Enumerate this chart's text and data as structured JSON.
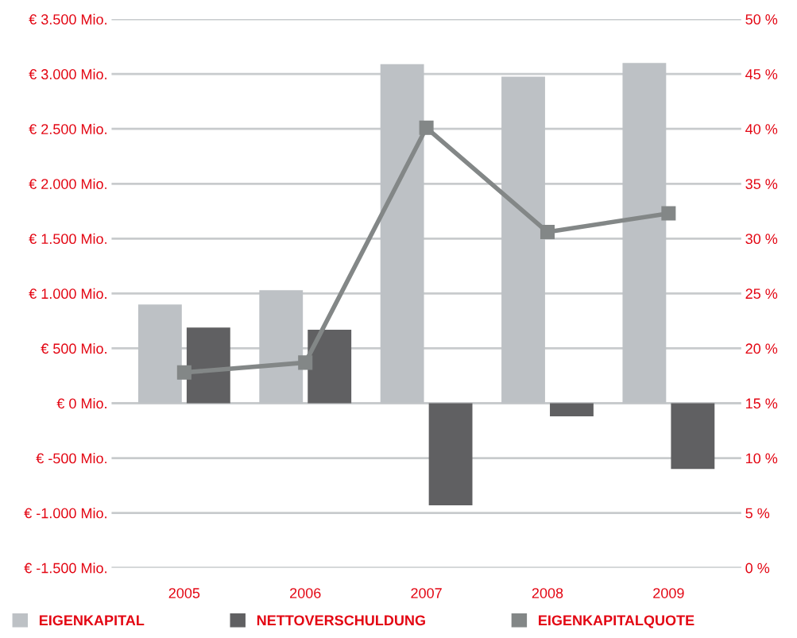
{
  "chart_data": {
    "type": "bar",
    "categories": [
      "2005",
      "2006",
      "2007",
      "2008",
      "2009"
    ],
    "series": [
      {
        "name": "EIGENKAPITAL",
        "color": "#bdc1c5",
        "values": [
          900,
          1030,
          3090,
          2975,
          3100
        ]
      },
      {
        "name": "NETTOVERSCHULDUNG",
        "color": "#606062",
        "values": [
          690,
          670,
          -930,
          -120,
          -600
        ]
      },
      {
        "name": "EIGENKAPITALQUOTE",
        "color": "#838787",
        "type": "line",
        "axis": "y2",
        "marker": "square",
        "values": [
          17.8,
          18.7,
          40.1,
          30.6,
          32.3
        ]
      }
    ],
    "ylim": [
      -1500,
      3500
    ],
    "yticks": [
      {
        "value": -1500,
        "label": "€ -1.500 Mio."
      },
      {
        "value": -1000,
        "label": "€ -1.000 Mio."
      },
      {
        "value": -500,
        "label": "€ -500 Mio."
      },
      {
        "value": 0,
        "label": "€ 0 Mio."
      },
      {
        "value": 500,
        "label": "€ 500 Mio."
      },
      {
        "value": 1000,
        "label": "€ 1.000 Mio."
      },
      {
        "value": 1500,
        "label": "€ 1.500 Mio."
      },
      {
        "value": 2000,
        "label": "€ 2.000 Mio."
      },
      {
        "value": 2500,
        "label": "€ 2.500 Mio."
      },
      {
        "value": 3000,
        "label": "€ 3.000 Mio."
      },
      {
        "value": 3500,
        "label": "€ 3.500 Mio."
      }
    ],
    "y2lim": [
      0,
      50
    ],
    "y2ticks": [
      {
        "value": 0,
        "label": "0 %"
      },
      {
        "value": 5,
        "label": "5 %"
      },
      {
        "value": 10,
        "label": "10 %"
      },
      {
        "value": 15,
        "label": "15 %"
      },
      {
        "value": 20,
        "label": "20 %"
      },
      {
        "value": 25,
        "label": "25 %"
      },
      {
        "value": 30,
        "label": "30 %"
      },
      {
        "value": 35,
        "label": "35 %"
      },
      {
        "value": 40,
        "label": "40 %"
      },
      {
        "value": 45,
        "label": "45 %"
      },
      {
        "value": 50,
        "label": "50 %"
      }
    ],
    "grid": "y",
    "legend": "bottom"
  }
}
